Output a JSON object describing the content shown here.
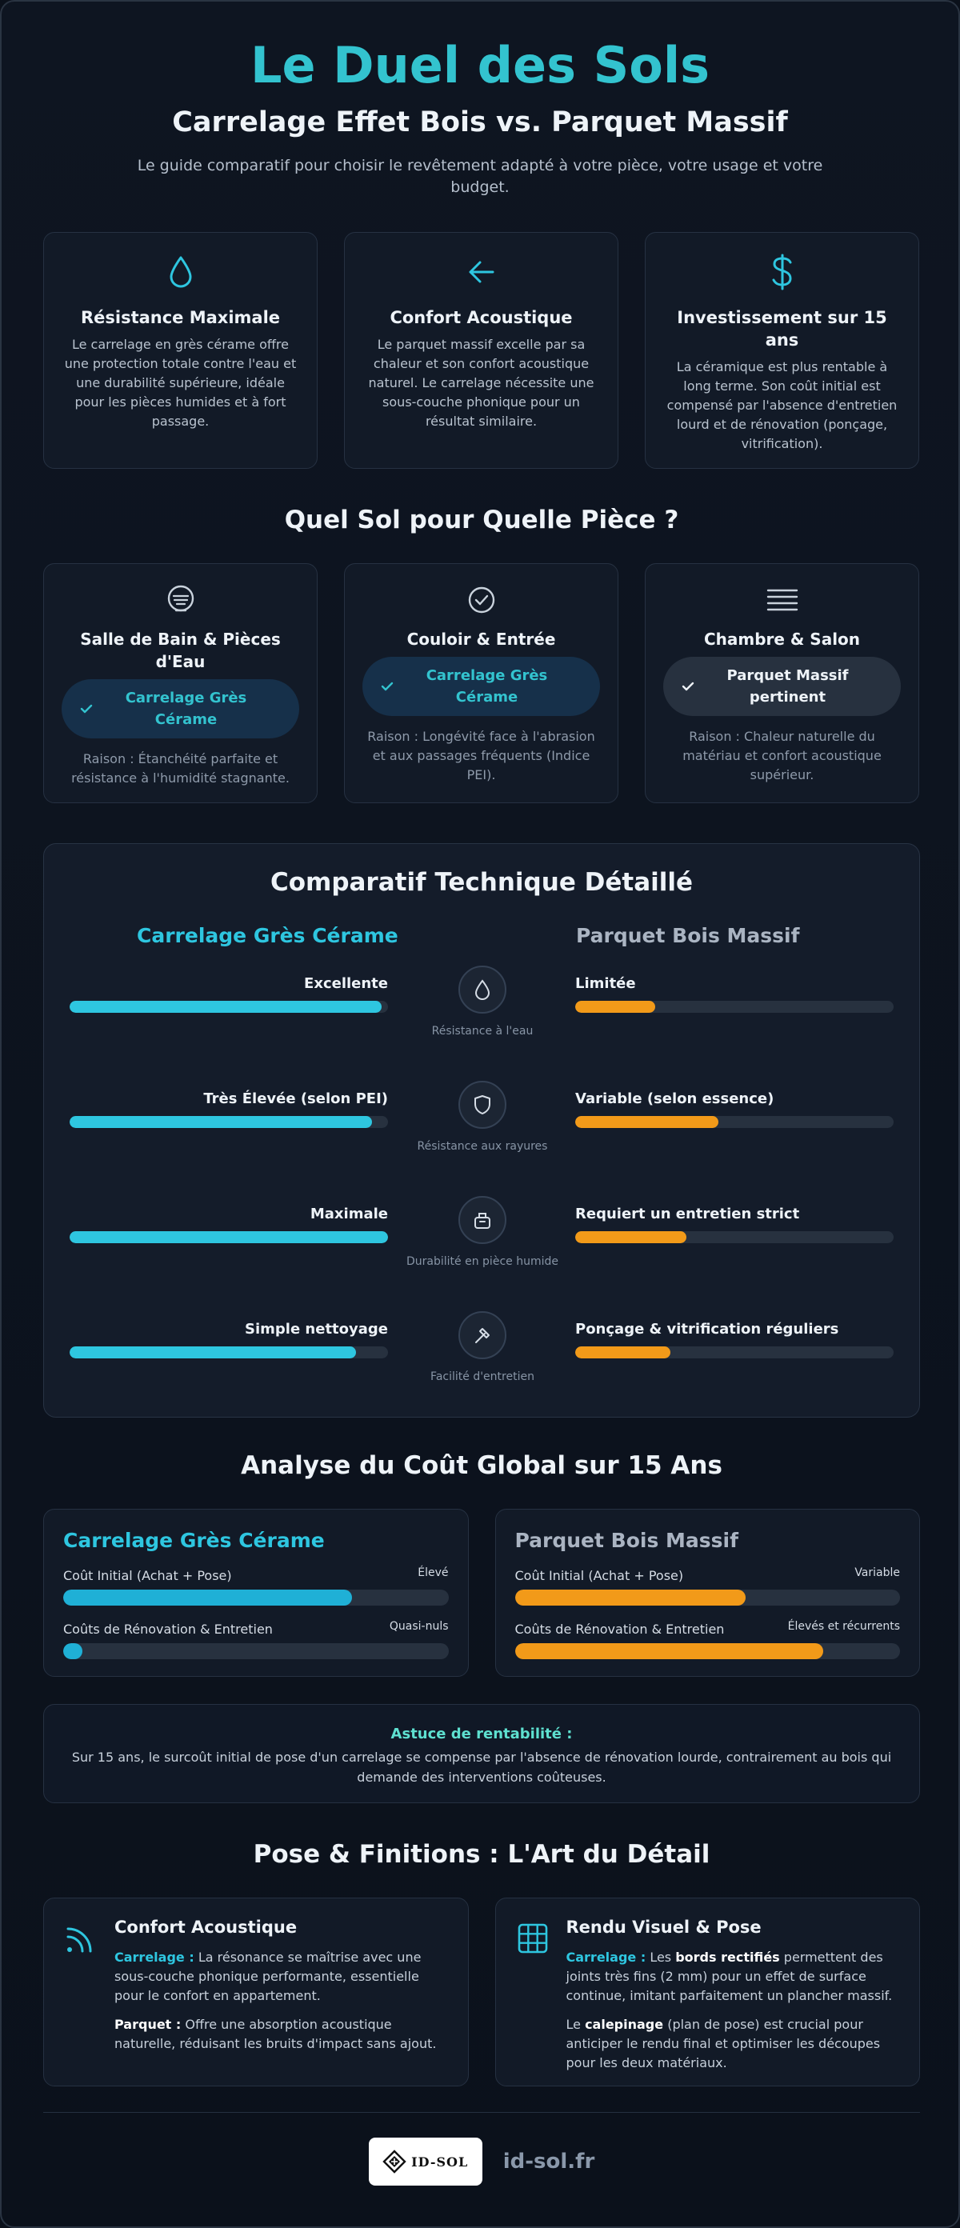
{
  "header": {
    "title": "Le Duel des Sols",
    "subtitle": "Carrelage Effet Bois vs. Parquet Massif",
    "intro": "Le guide comparatif pour choisir le revêtement adapté à votre pièce, votre usage et votre budget."
  },
  "features": [
    {
      "icon": "water-drop-icon",
      "title": "Résistance Maximale",
      "text": "Le carrelage en grès cérame offre une protection totale contre l'eau et une durabilité supérieure, idéale pour les pièces humides et à fort passage."
    },
    {
      "icon": "arrow-left-icon",
      "title": "Confort Acoustique",
      "text": "Le parquet massif excelle par sa chaleur et son confort acoustique naturel. Le carrelage nécessite une sous-couche phonique pour un résultat similaire."
    },
    {
      "icon": "dollar-icon",
      "title": "Investissement sur 15 ans",
      "text": "La céramique est plus rentable à long terme. Son coût initial est compensé par l'absence d'entretien lourd et de rénovation (ponçage, vitrification)."
    }
  ],
  "rooms_section": {
    "title": "Quel Sol pour Quelle Pièce ?",
    "rooms": [
      {
        "icon": "shower-icon",
        "name": "Salle de Bain & Pièces d'Eau",
        "choice": "Carrelage Grès Cérame",
        "variant": "teal",
        "reason": "Raison : Étanchéité parfaite et résistance à l'humidité stagnante."
      },
      {
        "icon": "check-circle-icon",
        "name": "Couloir & Entrée",
        "choice": "Carrelage Grès Cérame",
        "variant": "teal",
        "reason": "Raison : Longévité face à l'abrasion et aux passages fréquents (Indice PEI)."
      },
      {
        "icon": "menu-lines-icon",
        "name": "Chambre & Salon",
        "choice": "Parquet Massif pertinent",
        "variant": "grey",
        "reason": "Raison : Chaleur naturelle du matériau et confort acoustique supérieur."
      }
    ]
  },
  "tech": {
    "title": "Comparatif Technique Détaillé",
    "left_title": "Carrelage Grès Cérame",
    "right_title": "Parquet Bois Massif",
    "rows": [
      {
        "icon": "water-drop-icon",
        "criterion": "Résistance à l'eau",
        "left": "Excellente",
        "left_level": 0.98,
        "right": "Limitée",
        "right_level": 0.25
      },
      {
        "icon": "shield-icon",
        "criterion": "Résistance aux rayures",
        "left": "Très Élevée (selon PEI)",
        "left_level": 0.95,
        "right": "Variable (selon essence)",
        "right_level": 0.45
      },
      {
        "icon": "bucket-icon",
        "criterion": "Durabilité en pièce humide",
        "left": "Maximale",
        "left_level": 1.0,
        "right": "Requiert un entretien strict",
        "right_level": 0.35
      },
      {
        "icon": "hammer-icon",
        "criterion": "Facilité d'entretien",
        "left": "Simple nettoyage",
        "left_level": 0.9,
        "right": "Ponçage & vitrification réguliers",
        "right_level": 0.3
      }
    ]
  },
  "cost": {
    "title": "Analyse du Coût Global sur 15 Ans",
    "cards": [
      {
        "title": "Carrelage Grès Cérame",
        "color": "#2ec6e0",
        "items": [
          {
            "name": "Coût Initial (Achat + Pose)",
            "value": "Élevé",
            "level": 0.75
          },
          {
            "name": "Coûts de Rénovation & Entretien",
            "value": "Quasi-nuls",
            "level": 0.05
          }
        ]
      },
      {
        "title": "Parquet Bois Massif",
        "color": "#f29a19",
        "items": [
          {
            "name": "Coût Initial (Achat + Pose)",
            "value": "Variable",
            "level": 0.6
          },
          {
            "name": "Coûts de Rénovation & Entretien",
            "value": "Élevés et récurrents",
            "level": 0.8
          }
        ]
      }
    ]
  },
  "tip": {
    "title": "Astuce de rentabilité :",
    "text": "Sur 15 ans, le surcoût initial de pose d'un carrelage se compense par l'absence de rénovation lourde, contrairement au bois qui demande des interventions coûteuses."
  },
  "finishes": {
    "title": "Pose & Finitions : L'Art du Détail",
    "acoustic": {
      "icon": "signal-waves-icon",
      "title": "Confort Acoustique",
      "p1_label": "Carrelage :",
      "p1_text": " La résonance se maîtrise avec une sous-couche phonique performante, essentielle pour le confort en appartement.",
      "p2_label": "Parquet :",
      "p2_text": " Offre une absorption acoustique naturelle, réduisant les bruits d'impact sans ajout."
    },
    "visual": {
      "icon": "grid-icon",
      "title": "Rendu Visuel & Pose",
      "p1_label": "Carrelage :",
      "p1_a": " Les ",
      "p1_bold": "bords rectifiés",
      "p1_b": " permettent des joints très fins (2 mm) pour un effet de surface continue, imitant parfaitement un plancher massif.",
      "p2_a": "Le ",
      "p2_bold": "calepinage",
      "p2_b": " (plan de pose) est crucial pour anticiper le rendu final et optimiser les découpes pour les deux matériaux."
    }
  },
  "footer": {
    "logo_text": "ID-SOL",
    "site": "id-sol.fr"
  },
  "colors": {
    "accent_teal": "#33c3cf",
    "tile_blue": "#2ec6e0",
    "wood_orange": "#f29a19",
    "background": "#0b111b"
  }
}
